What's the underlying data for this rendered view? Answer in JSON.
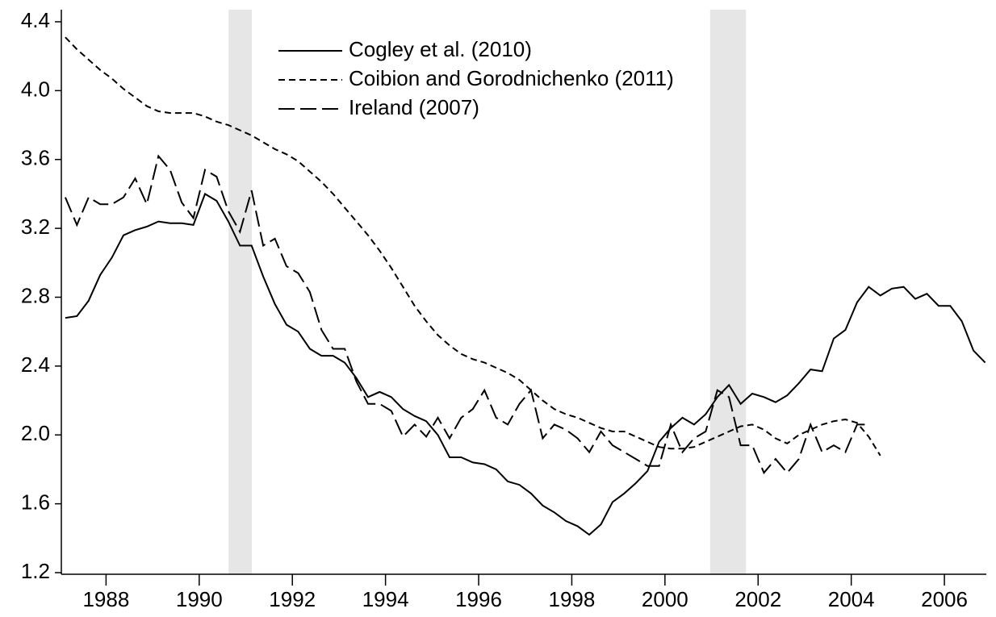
{
  "chart_data": {
    "type": "line",
    "x": [
      1987.125,
      1987.375,
      1987.625,
      1987.875,
      1988.125,
      1988.375,
      1988.625,
      1988.875,
      1989.125,
      1989.375,
      1989.625,
      1989.875,
      1990.125,
      1990.375,
      1990.625,
      1990.875,
      1991.125,
      1991.375,
      1991.625,
      1991.875,
      1992.125,
      1992.375,
      1992.625,
      1992.875,
      1993.125,
      1993.375,
      1993.625,
      1993.875,
      1994.125,
      1994.375,
      1994.625,
      1994.875,
      1995.125,
      1995.375,
      1995.625,
      1995.875,
      1996.125,
      1996.375,
      1996.625,
      1996.875,
      1997.125,
      1997.375,
      1997.625,
      1997.875,
      1998.125,
      1998.375,
      1998.625,
      1998.875,
      1999.125,
      1999.375,
      1999.625,
      1999.875,
      2000.125,
      2000.375,
      2000.625,
      2000.875,
      2001.125,
      2001.375,
      2001.625,
      2001.875,
      2002.125,
      2002.375,
      2002.625,
      2002.875,
      2003.125,
      2003.375,
      2003.625,
      2003.875,
      2004.125,
      2004.375,
      2004.625,
      2004.875,
      2005.125,
      2005.375,
      2005.625,
      2005.875,
      2006.125,
      2006.375,
      2006.625,
      2006.875
    ],
    "series": [
      {
        "name": "Cogley et al. (2010)",
        "color": "#000000",
        "dash": "solid",
        "values": [
          2.68,
          2.69,
          2.78,
          2.93,
          3.03,
          3.16,
          3.19,
          3.21,
          3.24,
          3.23,
          3.23,
          3.22,
          3.4,
          3.36,
          3.24,
          3.1,
          3.1,
          2.92,
          2.76,
          2.64,
          2.6,
          2.5,
          2.46,
          2.46,
          2.42,
          2.33,
          2.22,
          2.25,
          2.22,
          2.15,
          2.11,
          2.08,
          2.0,
          1.87,
          1.87,
          1.84,
          1.83,
          1.8,
          1.73,
          1.71,
          1.66,
          1.59,
          1.55,
          1.5,
          1.47,
          1.42,
          1.48,
          1.61,
          1.66,
          1.72,
          1.79,
          1.96,
          2.04,
          2.1,
          2.06,
          2.12,
          2.22,
          2.29,
          2.18,
          2.24,
          2.22,
          2.19,
          2.23,
          2.3,
          2.38,
          2.37,
          2.56,
          2.61,
          2.77,
          2.86,
          2.81,
          2.85,
          2.86,
          2.79,
          2.82,
          2.75,
          2.75,
          2.66,
          2.49,
          2.42
        ]
      },
      {
        "name": "Coibion and Gorodnichenko (2011)",
        "color": "#000000",
        "dash": "short-dash",
        "values": [
          4.31,
          4.24,
          4.18,
          4.12,
          4.07,
          4.01,
          3.96,
          3.91,
          3.88,
          3.87,
          3.87,
          3.87,
          3.85,
          3.82,
          3.8,
          3.77,
          3.74,
          3.7,
          3.66,
          3.63,
          3.59,
          3.53,
          3.47,
          3.4,
          3.32,
          3.24,
          3.16,
          3.07,
          2.97,
          2.86,
          2.75,
          2.66,
          2.58,
          2.52,
          2.47,
          2.44,
          2.42,
          2.39,
          2.36,
          2.32,
          2.26,
          2.2,
          2.15,
          2.12,
          2.1,
          2.07,
          2.04,
          2.02,
          2.02,
          1.99,
          1.96,
          1.93,
          1.92,
          1.92,
          1.93,
          1.96,
          1.99,
          2.02,
          2.05,
          2.06,
          2.03,
          1.98,
          1.95,
          2.0,
          2.03,
          2.06,
          2.08,
          2.09,
          2.07,
          1.99,
          1.88,
          null,
          null,
          null,
          null,
          null,
          null,
          null,
          null,
          null
        ]
      },
      {
        "name": "Ireland (2007)",
        "color": "#000000",
        "dash": "long-dash",
        "values": [
          3.38,
          3.22,
          3.38,
          3.34,
          3.34,
          3.38,
          3.49,
          3.34,
          3.62,
          3.54,
          3.35,
          3.26,
          3.54,
          3.5,
          3.3,
          3.18,
          3.42,
          3.1,
          3.14,
          2.98,
          2.94,
          2.83,
          2.61,
          2.5,
          2.5,
          2.31,
          2.18,
          2.18,
          2.14,
          1.99,
          2.06,
          1.99,
          2.1,
          1.98,
          2.1,
          2.15,
          2.26,
          2.1,
          2.06,
          2.18,
          2.26,
          1.98,
          2.06,
          2.03,
          1.98,
          1.9,
          2.02,
          1.94,
          1.9,
          1.86,
          1.82,
          1.82,
          2.06,
          1.9,
          1.98,
          2.02,
          2.26,
          2.22,
          1.94,
          1.94,
          1.78,
          1.86,
          1.78,
          1.86,
          2.06,
          1.9,
          1.94,
          1.9,
          2.06,
          2.06,
          null,
          null,
          null,
          null,
          null,
          null,
          null,
          null,
          null,
          null
        ]
      }
    ],
    "shaded_periods": [
      [
        1990.63,
        1991.13
      ],
      [
        2000.97,
        2001.74
      ]
    ],
    "shade_color": "#e6e6e6",
    "xlim": [
      1987.04,
      2006.9
    ],
    "xticks": [
      1988,
      1990,
      1992,
      1994,
      1996,
      1998,
      2000,
      2002,
      2004,
      2006
    ],
    "ylim": [
      1.2,
      4.4
    ],
    "yticks": [
      1.2,
      1.6,
      {
        "value": 2.0,
        "label": "2.0"
      },
      2.4,
      2.8,
      3.2,
      3.6,
      {
        "value": 4.0,
        "label": "4.0"
      },
      4.4
    ],
    "legend": "upper-left"
  }
}
